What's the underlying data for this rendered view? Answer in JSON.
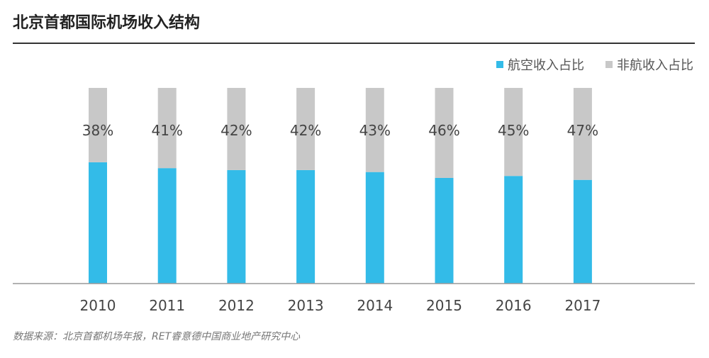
{
  "title": "北京首都国际机场收入结构",
  "source": "数据来源：北京首都机场年报，RET睿意德中国商业地产研究中心",
  "colors": {
    "aero": "#33bbe8",
    "nonaero": "#c8c8c8",
    "axis": "#999999"
  },
  "chart_data": {
    "type": "bar",
    "stacked": true,
    "categories": [
      "2010",
      "2011",
      "2012",
      "2013",
      "2014",
      "2015",
      "2016",
      "2017"
    ],
    "series": [
      {
        "name": "航空收入占比",
        "values": [
          62,
          59,
          58,
          58,
          57,
          54,
          55,
          53
        ]
      },
      {
        "name": "非航收入占比",
        "values": [
          38,
          41,
          42,
          42,
          43,
          46,
          45,
          47
        ]
      }
    ],
    "data_labels": [
      "38%",
      "41%",
      "42%",
      "42%",
      "43%",
      "46%",
      "45%",
      "47%"
    ],
    "ylim": [
      0,
      100
    ],
    "legend_position": "top-right",
    "grid": false
  }
}
